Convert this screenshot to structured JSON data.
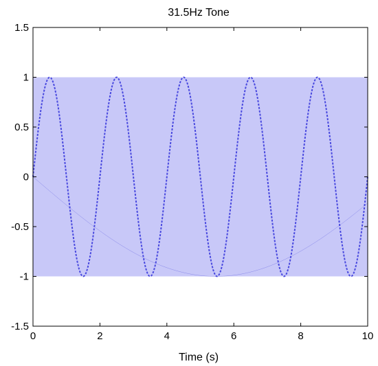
{
  "chart_data": {
    "type": "line",
    "title": "31.5Hz Tone",
    "xlabel": "Time (s)",
    "ylabel": "",
    "xlim": [
      0,
      10
    ],
    "ylim": [
      -1.5,
      1.5
    ],
    "xticks": [
      0,
      2,
      4,
      6,
      8,
      10
    ],
    "xtick_labels": [
      "0",
      "2",
      "4",
      "6",
      "8",
      "10"
    ],
    "yticks": [
      -1.5,
      -1,
      -0.5,
      0,
      0.5,
      1,
      1.5
    ],
    "ytick_labels": [
      "-1.5",
      "-1",
      "-0.5",
      "0",
      "0.5",
      "1",
      "1.5"
    ],
    "grid": false,
    "legend": "none",
    "series": [
      {
        "frequency_hz": 31.5,
        "amplitude": 1,
        "sample_interval_s": 0.0317,
        "x_start": 0,
        "x_end": 10,
        "color": "#3b3bdc"
      }
    ],
    "aliased_envelope_period_s": 2,
    "band_color": "#c8c8f8",
    "dense_line_color": "#7474e4"
  }
}
